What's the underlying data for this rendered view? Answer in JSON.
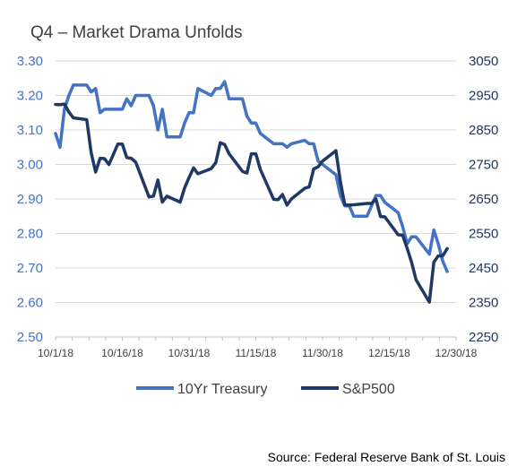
{
  "chart_data": {
    "type": "line",
    "title": "Q4 – Market Drama Unfolds",
    "source": "Source: Federal Reserve Bank of St. Louis",
    "x_ticks": [
      "10/1/18",
      "10/16/18",
      "10/31/18",
      "11/15/18",
      "11/30/18",
      "12/15/18",
      "12/30/18"
    ],
    "x_range": [
      0,
      90
    ],
    "x_tick_positions": [
      0,
      15,
      30,
      45,
      60,
      75,
      90
    ],
    "y_left": {
      "ylim": [
        2.5,
        3.3
      ],
      "ticks": [
        "2.50",
        "2.60",
        "2.70",
        "2.80",
        "2.90",
        "3.00",
        "3.10",
        "3.20",
        "3.30"
      ],
      "color": "#4472C4"
    },
    "y_right": {
      "ylim": [
        2250,
        3050
      ],
      "ticks": [
        "2250",
        "2350",
        "2450",
        "2550",
        "2650",
        "2750",
        "2850",
        "2950",
        "3050"
      ],
      "color": "#1F3864"
    },
    "grid": true,
    "legend_position": "bottom",
    "series": [
      {
        "name": "10Yr Treasury",
        "axis": "left",
        "color": "#4472C4",
        "x": [
          0,
          1,
          2,
          3,
          4,
          7,
          8,
          9,
          10,
          11,
          12,
          14,
          15,
          16,
          17,
          18,
          21,
          22,
          23,
          24,
          25,
          28,
          29,
          30,
          31,
          32,
          35,
          36,
          37,
          38,
          39,
          42,
          43,
          44,
          45,
          46,
          49,
          50,
          51,
          52,
          53,
          56,
          57,
          58,
          59,
          60,
          63,
          64,
          65,
          66,
          67,
          70,
          71,
          72,
          73,
          74,
          77,
          78,
          79,
          80,
          81,
          84,
          85,
          86,
          87,
          88
        ],
        "values": [
          3.09,
          3.05,
          3.16,
          3.2,
          3.23,
          3.23,
          3.21,
          3.22,
          3.15,
          3.16,
          3.16,
          3.16,
          3.16,
          3.19,
          3.17,
          3.2,
          3.2,
          3.17,
          3.1,
          3.16,
          3.08,
          3.08,
          3.12,
          3.15,
          3.15,
          3.22,
          3.2,
          3.22,
          3.22,
          3.24,
          3.19,
          3.19,
          3.14,
          3.12,
          3.12,
          3.09,
          3.06,
          3.06,
          3.06,
          3.05,
          3.06,
          3.07,
          3.06,
          3.06,
          3.01,
          3.0,
          2.97,
          2.91,
          2.88,
          2.88,
          2.85,
          2.85,
          2.88,
          2.91,
          2.91,
          2.89,
          2.86,
          2.82,
          2.77,
          2.79,
          2.79,
          2.74,
          2.81,
          2.77,
          2.72,
          2.69
        ]
      },
      {
        "name": "S&P500",
        "axis": "right",
        "color": "#1F3864",
        "x": [
          0,
          1,
          2,
          3,
          4,
          7,
          8,
          9,
          10,
          11,
          12,
          14,
          15,
          16,
          17,
          18,
          21,
          22,
          23,
          24,
          25,
          28,
          29,
          30,
          31,
          32,
          35,
          36,
          37,
          38,
          39,
          42,
          43,
          44,
          45,
          46,
          49,
          50,
          51,
          52,
          53,
          56,
          57,
          58,
          59,
          60,
          63,
          64,
          65,
          66,
          67,
          70,
          71,
          72,
          73,
          74,
          77,
          78,
          79,
          80,
          81,
          84,
          85,
          86,
          87,
          88
        ],
        "values": [
          2924,
          2923,
          2925,
          2902,
          2885,
          2880,
          2785,
          2728,
          2768,
          2767,
          2750,
          2809,
          2809,
          2770,
          2768,
          2757,
          2656,
          2658,
          2705,
          2641,
          2658,
          2641,
          2682,
          2712,
          2740,
          2723,
          2738,
          2755,
          2813,
          2808,
          2781,
          2730,
          2725,
          2781,
          2781,
          2736,
          2649,
          2648,
          2663,
          2632,
          2650,
          2681,
          2685,
          2737,
          2743,
          2760,
          2790,
          2700,
          2633,
          2632,
          2633,
          2637,
          2637,
          2650,
          2599,
          2598,
          2546,
          2545,
          2507,
          2467,
          2416,
          2351,
          2467,
          2485,
          2485,
          2506
        ]
      }
    ]
  }
}
